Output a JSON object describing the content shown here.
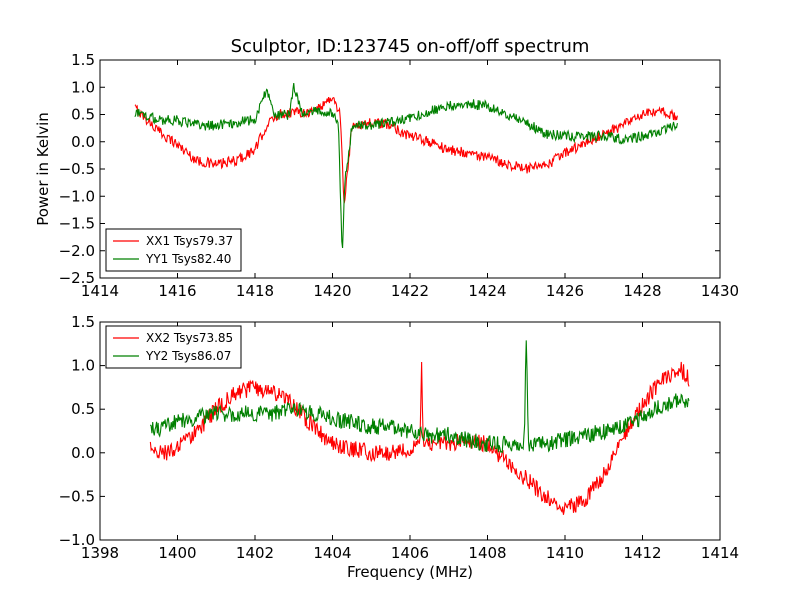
{
  "figure": {
    "title": "Sculptor, ID:123745 on-off/off spectrum"
  },
  "chart_data": [
    {
      "type": "line",
      "title": "Sculptor, ID:123745 on-off/off spectrum",
      "xlabel": "",
      "ylabel": "Power in Kelvin",
      "xlim": [
        1414,
        1430
      ],
      "ylim": [
        -2.5,
        1.5
      ],
      "xticks": [
        "1414",
        "1416",
        "1418",
        "1420",
        "1422",
        "1424",
        "1426",
        "1428",
        "1430"
      ],
      "yticks": [
        "−2.5",
        "−2.0",
        "−1.5",
        "−1.0",
        "−0.5",
        "0.0",
        "0.5",
        "1.0",
        "1.5"
      ],
      "grid": false,
      "legend_position": "lower-left",
      "series": [
        {
          "name": "XX1 Tsys79.37",
          "color": "#ff0000",
          "noise": 0.08,
          "x": [
            1414.9,
            1415.5,
            1416.0,
            1416.5,
            1417.0,
            1417.5,
            1418.0,
            1418.3,
            1418.6,
            1419.0,
            1419.5,
            1420.0,
            1420.2,
            1420.3,
            1420.4,
            1420.5,
            1421.0,
            1421.5,
            1422.0,
            1422.5,
            1423.0,
            1423.5,
            1424.0,
            1424.5,
            1425.0,
            1425.5,
            1426.0,
            1426.5,
            1427.0,
            1427.5,
            1428.0,
            1428.5,
            1428.9
          ],
          "y": [
            0.62,
            0.2,
            -0.05,
            -0.35,
            -0.42,
            -0.35,
            -0.15,
            0.3,
            0.5,
            0.55,
            0.55,
            0.82,
            0.5,
            -1.15,
            -0.5,
            0.3,
            0.35,
            0.3,
            0.1,
            0.0,
            -0.15,
            -0.2,
            -0.3,
            -0.4,
            -0.5,
            -0.45,
            -0.2,
            -0.05,
            0.15,
            0.3,
            0.5,
            0.55,
            0.45
          ]
        },
        {
          "name": "YY1 Tsys82.40",
          "color": "#008000",
          "noise": 0.08,
          "x": [
            1414.9,
            1415.5,
            1416.0,
            1416.5,
            1417.0,
            1417.5,
            1418.0,
            1418.3,
            1418.5,
            1418.9,
            1419.0,
            1419.2,
            1419.5,
            1420.0,
            1420.15,
            1420.25,
            1420.32,
            1420.42,
            1420.5,
            1421.0,
            1421.5,
            1422.0,
            1422.5,
            1423.0,
            1423.5,
            1424.0,
            1424.5,
            1425.0,
            1425.5,
            1426.0,
            1426.5,
            1427.0,
            1427.5,
            1428.0,
            1428.5,
            1428.9
          ],
          "y": [
            0.55,
            0.4,
            0.4,
            0.3,
            0.3,
            0.35,
            0.4,
            0.95,
            0.5,
            0.5,
            1.05,
            0.55,
            0.55,
            0.55,
            0.3,
            -2.05,
            -0.7,
            -0.2,
            0.3,
            0.3,
            0.35,
            0.45,
            0.55,
            0.65,
            0.7,
            0.65,
            0.5,
            0.35,
            0.15,
            0.1,
            0.1,
            0.1,
            0.05,
            0.1,
            0.2,
            0.3
          ]
        }
      ]
    },
    {
      "type": "line",
      "title": "",
      "xlabel": "Frequency (MHz)",
      "ylabel": "",
      "xlim": [
        1398,
        1414
      ],
      "ylim": [
        -1.0,
        1.5
      ],
      "xticks": [
        "1398",
        "1400",
        "1402",
        "1404",
        "1406",
        "1408",
        "1410",
        "1412",
        "1414"
      ],
      "yticks": [
        "−1.0",
        "−0.5",
        "0.0",
        "0.5",
        "1.0",
        "1.5"
      ],
      "grid": false,
      "legend_position": "upper-left",
      "series": [
        {
          "name": "XX2 Tsys73.85",
          "color": "#ff0000",
          "noise": 0.08,
          "x": [
            1399.3,
            1399.7,
            1400.0,
            1400.5,
            1401.0,
            1401.5,
            1402.0,
            1402.5,
            1403.0,
            1403.5,
            1404.0,
            1404.5,
            1405.0,
            1405.5,
            1406.0,
            1406.25,
            1406.3,
            1406.35,
            1406.5,
            1407.0,
            1407.5,
            1408.0,
            1408.5,
            1409.0,
            1409.5,
            1410.0,
            1410.5,
            1411.0,
            1411.5,
            1412.0,
            1412.5,
            1413.0,
            1413.2
          ],
          "y": [
            0.05,
            0.0,
            0.05,
            0.25,
            0.5,
            0.68,
            0.75,
            0.7,
            0.55,
            0.3,
            0.1,
            0.05,
            0.0,
            0.0,
            0.05,
            0.1,
            0.95,
            0.1,
            0.1,
            0.1,
            0.15,
            0.1,
            -0.1,
            -0.3,
            -0.5,
            -0.65,
            -0.55,
            -0.25,
            0.2,
            0.55,
            0.85,
            0.95,
            0.85
          ]
        },
        {
          "name": "YY2 Tsys86.07",
          "color": "#008000",
          "noise": 0.08,
          "x": [
            1399.3,
            1399.7,
            1400.0,
            1400.5,
            1401.0,
            1401.5,
            1402.0,
            1402.5,
            1403.0,
            1403.5,
            1404.0,
            1404.5,
            1405.0,
            1405.5,
            1406.0,
            1406.5,
            1407.0,
            1407.5,
            1408.0,
            1408.5,
            1408.95,
            1409.0,
            1409.05,
            1409.5,
            1410.0,
            1410.5,
            1411.0,
            1411.5,
            1412.0,
            1412.5,
            1413.0,
            1413.2
          ],
          "y": [
            0.25,
            0.3,
            0.35,
            0.4,
            0.45,
            0.45,
            0.45,
            0.45,
            0.5,
            0.45,
            0.4,
            0.35,
            0.3,
            0.3,
            0.25,
            0.2,
            0.2,
            0.15,
            0.1,
            0.1,
            0.1,
            1.35,
            0.1,
            0.1,
            0.15,
            0.2,
            0.25,
            0.3,
            0.4,
            0.55,
            0.6,
            0.55
          ]
        }
      ]
    }
  ]
}
